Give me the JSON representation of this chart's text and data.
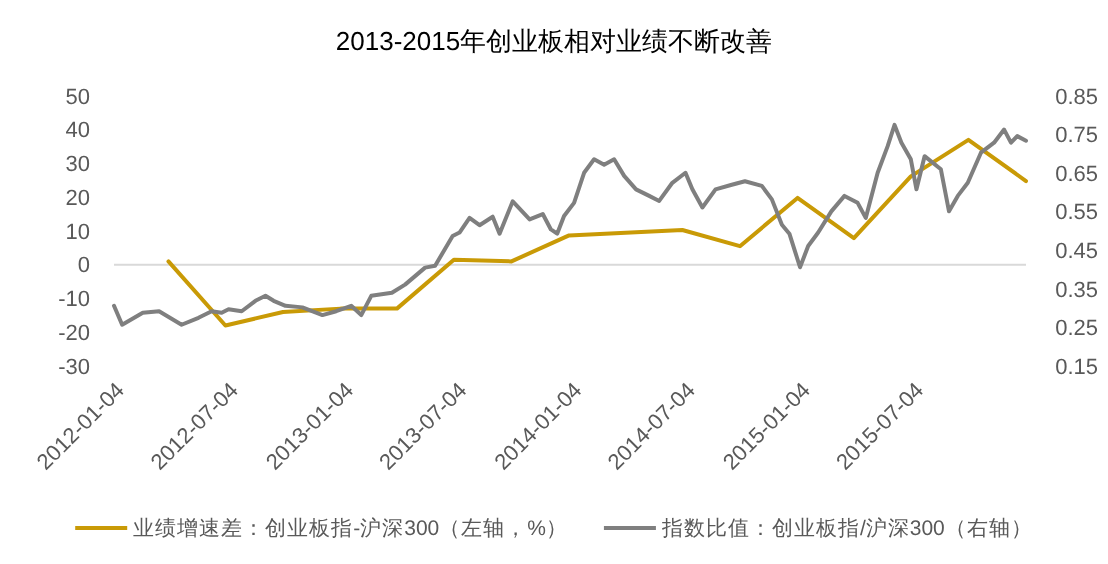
{
  "chart_data": {
    "type": "line",
    "title": "2013-2015年创业板相对业绩不断改善",
    "xlim": [
      "2012-01-04",
      "2015-12-31"
    ],
    "xticks": [
      "2012-01-04",
      "2012-07-04",
      "2013-01-04",
      "2013-07-04",
      "2014-01-04",
      "2014-07-04",
      "2015-01-04",
      "2015-07-04"
    ],
    "ylim": [
      -30,
      50
    ],
    "yticks": [
      -30,
      -20,
      -10,
      0,
      10,
      20,
      30,
      40,
      50
    ],
    "y2lim": [
      0.15,
      0.85
    ],
    "y2ticks": [
      0.15,
      0.25,
      0.35,
      0.45,
      0.55,
      0.65,
      0.75,
      0.85
    ],
    "legend": "bottom",
    "ref_lines": [
      {
        "axis": "y",
        "value": 0,
        "color": "#d9d9d9"
      }
    ],
    "series": [
      {
        "name": "业绩增速差：创业板指-沪深300（左轴，%）",
        "color": "#c99a06",
        "x": [
          "2012-03-31",
          "2012-06-30",
          "2012-09-30",
          "2012-12-31",
          "2013-03-31",
          "2013-06-30",
          "2013-09-30",
          "2013-12-31",
          "2014-06-30",
          "2014-09-30",
          "2014-12-31",
          "2015-03-31",
          "2015-06-30",
          "2015-09-30",
          "2015-12-31"
        ],
        "values": [
          1,
          -18,
          -14,
          -13,
          -13,
          1.5,
          1,
          8.7,
          10.3,
          5.5,
          19.8,
          7.9,
          26.2,
          37,
          24.8
        ]
      },
      {
        "name": "指数比值：创业板指/沪深300（右轴）",
        "color": "#7f7f7f",
        "axis": "y2",
        "x": [
          "2012-01-04",
          "2012-01-17",
          "2012-02-19",
          "2012-03-16",
          "2012-04-21",
          "2012-05-18",
          "2012-06-08",
          "2012-06-24",
          "2012-07-05",
          "2012-07-26",
          "2012-08-17",
          "2012-09-02",
          "2012-09-15",
          "2012-10-04",
          "2012-10-31",
          "2012-12-02",
          "2012-12-24",
          "2013-01-17",
          "2013-02-02",
          "2013-02-18",
          "2013-03-23",
          "2013-04-13",
          "2013-05-15",
          "2013-05-31",
          "2013-06-28",
          "2013-07-09",
          "2013-07-25",
          "2013-08-10",
          "2013-08-31",
          "2013-09-11",
          "2013-10-02",
          "2013-10-29",
          "2013-11-19",
          "2013-12-02",
          "2013-12-12",
          "2013-12-23",
          "2014-01-08",
          "2014-01-24",
          "2014-02-09",
          "2014-02-25",
          "2014-03-13",
          "2014-03-29",
          "2014-04-17",
          "2014-05-08",
          "2014-05-24",
          "2014-06-14",
          "2014-07-05",
          "2014-07-16",
          "2014-08-01",
          "2014-08-22",
          "2014-09-17",
          "2014-10-08",
          "2014-11-04",
          "2014-11-20",
          "2014-12-06",
          "2014-12-18",
          "2015-01-04",
          "2015-01-17",
          "2015-02-02",
          "2015-02-23",
          "2015-03-16",
          "2015-04-06",
          "2015-04-19",
          "2015-05-08",
          "2015-05-24",
          "2015-06-04",
          "2015-06-15",
          "2015-06-30",
          "2015-07-09",
          "2015-07-22",
          "2015-08-17",
          "2015-08-30",
          "2015-09-13",
          "2015-09-29",
          "2015-10-20",
          "2015-11-10",
          "2015-11-26",
          "2015-12-07",
          "2015-12-17",
          "2015-12-31"
        ],
        "values": [
          0.306,
          0.257,
          0.288,
          0.292,
          0.257,
          0.275,
          0.292,
          0.288,
          0.297,
          0.292,
          0.319,
          0.332,
          0.319,
          0.306,
          0.302,
          0.282,
          0.292,
          0.306,
          0.282,
          0.332,
          0.34,
          0.361,
          0.405,
          0.41,
          0.487,
          0.496,
          0.534,
          0.515,
          0.537,
          0.493,
          0.577,
          0.53,
          0.544,
          0.504,
          0.493,
          0.539,
          0.573,
          0.651,
          0.686,
          0.672,
          0.686,
          0.643,
          0.608,
          0.591,
          0.578,
          0.625,
          0.651,
          0.608,
          0.561,
          0.608,
          0.62,
          0.629,
          0.617,
          0.582,
          0.516,
          0.493,
          0.406,
          0.461,
          0.496,
          0.551,
          0.591,
          0.573,
          0.534,
          0.651,
          0.72,
          0.775,
          0.729,
          0.686,
          0.608,
          0.694,
          0.66,
          0.551,
          0.591,
          0.625,
          0.703,
          0.729,
          0.763,
          0.729,
          0.746,
          0.734
        ]
      }
    ]
  }
}
